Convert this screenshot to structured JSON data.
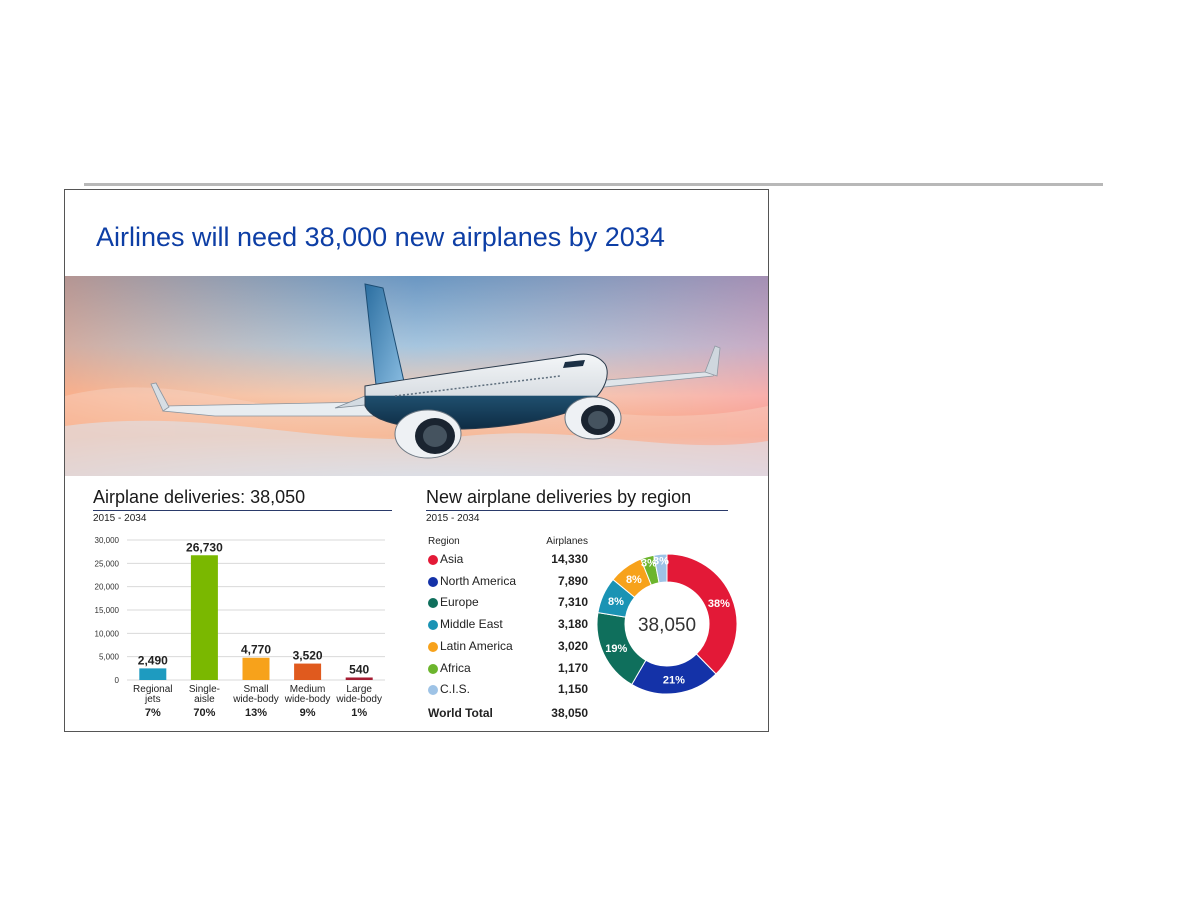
{
  "slide": {
    "title": "Airlines will need 38,000 new airplanes by 2034"
  },
  "hero_image": {
    "description_icon": "airplane-photo"
  },
  "chart_data": [
    {
      "type": "bar",
      "title": "Airplane deliveries: 38,050",
      "subtitle": "2015 - 2034",
      "categories": [
        "Regional jets",
        "Single-aisle",
        "Small wide-body",
        "Medium wide-body",
        "Large wide-body"
      ],
      "category_lines": [
        [
          "Regional",
          "jets"
        ],
        [
          "Single-",
          "aisle"
        ],
        [
          "Small",
          "wide-body"
        ],
        [
          "Medium",
          "wide-body"
        ],
        [
          "Large",
          "wide-body"
        ]
      ],
      "values": [
        2490,
        26730,
        4770,
        3520,
        540
      ],
      "value_labels": [
        "2,490",
        "26,730",
        "4,770",
        "3,520",
        "540"
      ],
      "shares": [
        "7%",
        "70%",
        "13%",
        "9%",
        "1%"
      ],
      "colors": [
        "#1e9bc0",
        "#7ab800",
        "#f7a21b",
        "#e05a1e",
        "#a51d33"
      ],
      "ylim": [
        0,
        30000
      ],
      "yticks": [
        0,
        5000,
        10000,
        15000,
        20000,
        25000,
        30000
      ],
      "ytick_labels": [
        "0",
        "5,000",
        "10,000",
        "15,000",
        "20,000",
        "25,000",
        "30,000"
      ],
      "grid": true
    },
    {
      "type": "pie",
      "title": "New airplane deliveries by region",
      "subtitle": "2015 - 2034",
      "column_headers": {
        "region": "Region",
        "value": "Airplanes"
      },
      "categories": [
        "Asia",
        "North America",
        "Europe",
        "Middle East",
        "Latin America",
        "Africa",
        "C.I.S."
      ],
      "values": [
        14330,
        7890,
        7310,
        3180,
        3020,
        1170,
        1150
      ],
      "value_labels": [
        "14,330",
        "7,890",
        "7,310",
        "3,180",
        "3,020",
        "1,170",
        "1,150"
      ],
      "percent_labels": [
        "38%",
        "21%",
        "19%",
        "8%",
        "8%",
        "3%",
        "3%"
      ],
      "colors": [
        "#e31937",
        "#1432a8",
        "#0f6f5c",
        "#1a93b4",
        "#f7a21b",
        "#6cb52d",
        "#9ec3e6"
      ],
      "total_label": "World Total",
      "total_value": "38,050",
      "center_label": "38,050"
    }
  ]
}
